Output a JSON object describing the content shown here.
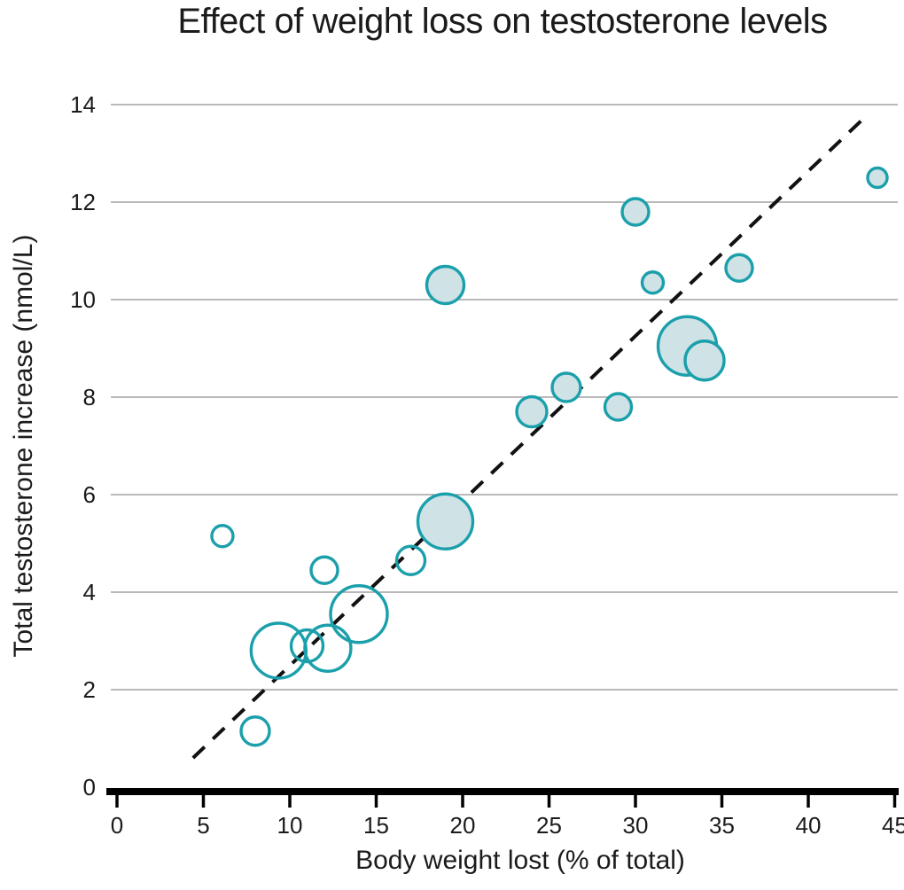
{
  "chart_data": {
    "type": "scatter",
    "title": "Effect of weight loss on testosterone levels",
    "xlabel": "Body weight lost (% of total)",
    "ylabel": "Total testosterone increase (nmol/L)",
    "xlim": [
      0,
      45
    ],
    "ylim": [
      0,
      14
    ],
    "x_ticks": [
      0,
      5,
      10,
      15,
      20,
      25,
      30,
      35,
      40,
      45
    ],
    "y_ticks": [
      0,
      2,
      4,
      6,
      8,
      10,
      12,
      14
    ],
    "grid": "horizontal-only",
    "legend": "none",
    "colors": {
      "bubble_stroke": "#1ba0ab",
      "bubble_fill": "#cfe2e6",
      "gridline": "#8f8f8f",
      "axis": "#000000",
      "text": "#1b1b1b",
      "trend_line": "#111111"
    },
    "trend_line": {
      "style": "dashed",
      "x1": 4.4,
      "y1": 0.6,
      "x2": 43.3,
      "y2": 13.75
    },
    "series": [
      {
        "name": "open-bubbles",
        "filled": false,
        "points": [
          {
            "x": 6.1,
            "y": 5.15,
            "r": 12
          },
          {
            "x": 8.0,
            "y": 1.15,
            "r": 16
          },
          {
            "x": 9.35,
            "y": 2.8,
            "r": 31
          },
          {
            "x": 11.0,
            "y": 2.9,
            "r": 18
          },
          {
            "x": 12.0,
            "y": 4.45,
            "r": 15
          },
          {
            "x": 12.2,
            "y": 2.85,
            "r": 26
          },
          {
            "x": 14.0,
            "y": 3.55,
            "r": 32
          },
          {
            "x": 17.0,
            "y": 4.65,
            "r": 16
          }
        ]
      },
      {
        "name": "filled-bubbles",
        "filled": true,
        "points": [
          {
            "x": 19.0,
            "y": 5.45,
            "r": 31
          },
          {
            "x": 19.0,
            "y": 10.3,
            "r": 21
          },
          {
            "x": 24.0,
            "y": 7.7,
            "r": 17
          },
          {
            "x": 26.0,
            "y": 8.2,
            "r": 16
          },
          {
            "x": 29.0,
            "y": 7.8,
            "r": 15
          },
          {
            "x": 30.0,
            "y": 11.8,
            "r": 15
          },
          {
            "x": 31.0,
            "y": 10.35,
            "r": 12
          },
          {
            "x": 33.0,
            "y": 9.05,
            "r": 33
          },
          {
            "x": 34.0,
            "y": 8.75,
            "r": 22
          },
          {
            "x": 36.0,
            "y": 10.65,
            "r": 15
          },
          {
            "x": 44.0,
            "y": 12.5,
            "r": 11
          }
        ]
      }
    ]
  }
}
